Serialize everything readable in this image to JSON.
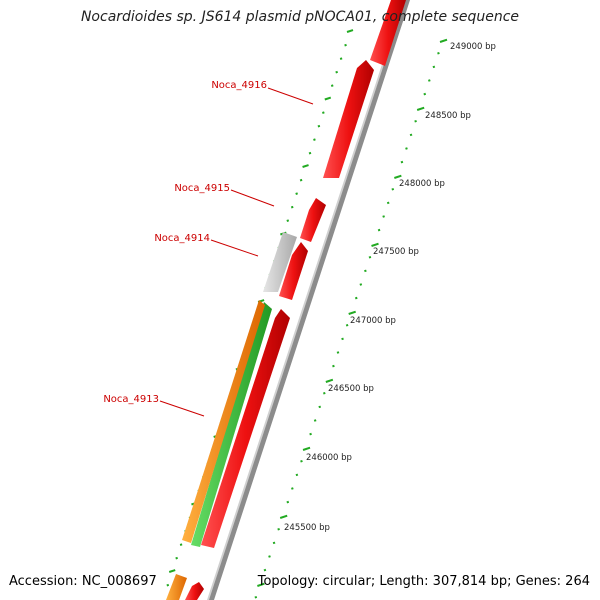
{
  "title": "Nocardioides sp. JS614 plasmid pNOCA01, complete sequence",
  "footer": {
    "accession": "Accession: NC_008697",
    "summary": "Topology: circular; Length: 307,814 bp; Genes: 264"
  },
  "colors": {
    "cds_forward": "#ee1111",
    "cds_other": "#c8c8c8",
    "orange_feature": "#ff8800",
    "green_feature": "#33bb33",
    "backbone": "#8c8c8c",
    "tick": "#22aa22",
    "label": "#cc0000"
  },
  "gene_labels": [
    "Noca_4916",
    "Noca_4915",
    "Noca_4914",
    "Noca_4913"
  ],
  "ruler_ticks": [
    "249000 bp",
    "248500 bp",
    "248000 bp",
    "247500 bp",
    "247000 bp",
    "246500 bp",
    "246000 bp",
    "245500 bp"
  ]
}
